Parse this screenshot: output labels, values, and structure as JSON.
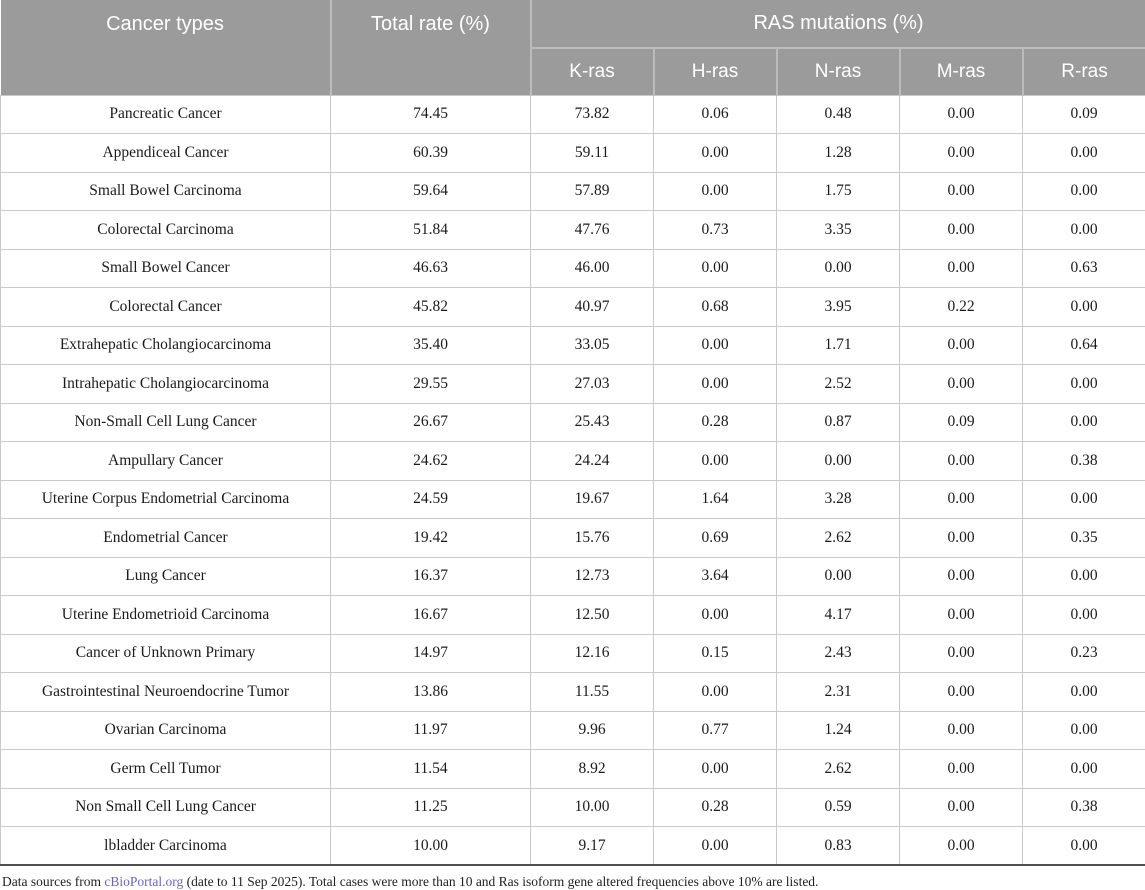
{
  "table": {
    "header": {
      "cancer_types": "Cancer types",
      "total_rate": "Total rate (%)",
      "ras_mutations": "RAS mutations (%)",
      "subcolumns": [
        "K-ras",
        "H-ras",
        "N-ras",
        "M-ras",
        "R-ras"
      ]
    },
    "rows": [
      {
        "cancer_type": "Pancreatic Cancer",
        "total_rate": "74.45",
        "values": [
          "73.82",
          "0.06",
          "0.48",
          "0.00",
          "0.09"
        ]
      },
      {
        "cancer_type": "Appendiceal Cancer",
        "total_rate": "60.39",
        "values": [
          "59.11",
          "0.00",
          "1.28",
          "0.00",
          "0.00"
        ]
      },
      {
        "cancer_type": "Small Bowel Carcinoma",
        "total_rate": "59.64",
        "values": [
          "57.89",
          "0.00",
          "1.75",
          "0.00",
          "0.00"
        ]
      },
      {
        "cancer_type": "Colorectal Carcinoma",
        "total_rate": "51.84",
        "values": [
          "47.76",
          "0.73",
          "3.35",
          "0.00",
          "0.00"
        ]
      },
      {
        "cancer_type": "Small Bowel Cancer",
        "total_rate": "46.63",
        "values": [
          "46.00",
          "0.00",
          "0.00",
          "0.00",
          "0.63"
        ]
      },
      {
        "cancer_type": "Colorectal Cancer",
        "total_rate": "45.82",
        "values": [
          "40.97",
          "0.68",
          "3.95",
          "0.22",
          "0.00"
        ]
      },
      {
        "cancer_type": "Extrahepatic Cholangiocarcinoma",
        "total_rate": "35.40",
        "values": [
          "33.05",
          "0.00",
          "1.71",
          "0.00",
          "0.64"
        ]
      },
      {
        "cancer_type": "Intrahepatic Cholangiocarcinoma",
        "total_rate": "29.55",
        "values": [
          "27.03",
          "0.00",
          "2.52",
          "0.00",
          "0.00"
        ]
      },
      {
        "cancer_type": "Non-Small Cell Lung Cancer",
        "total_rate": "26.67",
        "values": [
          "25.43",
          "0.28",
          "0.87",
          "0.09",
          "0.00"
        ]
      },
      {
        "cancer_type": "Ampullary Cancer",
        "total_rate": "24.62",
        "values": [
          "24.24",
          "0.00",
          "0.00",
          "0.00",
          "0.38"
        ]
      },
      {
        "cancer_type": "Uterine Corpus Endometrial Carcinoma",
        "total_rate": "24.59",
        "values": [
          "19.67",
          "1.64",
          "3.28",
          "0.00",
          "0.00"
        ]
      },
      {
        "cancer_type": "Endometrial Cancer",
        "total_rate": "19.42",
        "values": [
          "15.76",
          "0.69",
          "2.62",
          "0.00",
          "0.35"
        ]
      },
      {
        "cancer_type": "Lung Cancer",
        "total_rate": "16.37",
        "values": [
          "12.73",
          "3.64",
          "0.00",
          "0.00",
          "0.00"
        ]
      },
      {
        "cancer_type": "Uterine Endometrioid Carcinoma",
        "total_rate": "16.67",
        "values": [
          "12.50",
          "0.00",
          "4.17",
          "0.00",
          "0.00"
        ]
      },
      {
        "cancer_type": "Cancer of Unknown Primary",
        "total_rate": "14.97",
        "values": [
          "12.16",
          "0.15",
          "2.43",
          "0.00",
          "0.23"
        ]
      },
      {
        "cancer_type": "Gastrointestinal Neuroendocrine Tumor",
        "total_rate": "13.86",
        "values": [
          "11.55",
          "0.00",
          "2.31",
          "0.00",
          "0.00"
        ]
      },
      {
        "cancer_type": "Ovarian Carcinoma",
        "total_rate": "11.97",
        "values": [
          "9.96",
          "0.77",
          "1.24",
          "0.00",
          "0.00"
        ]
      },
      {
        "cancer_type": "Germ Cell Tumor",
        "total_rate": "11.54",
        "values": [
          "8.92",
          "0.00",
          "2.62",
          "0.00",
          "0.00"
        ]
      },
      {
        "cancer_type": "Non Small Cell Lung Cancer",
        "total_rate": "11.25",
        "values": [
          "10.00",
          "0.28",
          "0.59",
          "0.00",
          "0.38"
        ]
      },
      {
        "cancer_type": "lbladder Carcinoma",
        "total_rate": "10.00",
        "values": [
          "9.17",
          "0.00",
          "0.83",
          "0.00",
          "0.00"
        ]
      }
    ]
  },
  "footnote": {
    "prefix": "Data sources from ",
    "link_text": "cBioPortal.org",
    "suffix": " (date to 11 Sep 2025). Total cases were more than 10 and Ras isoform gene altered frequencies above 10% are listed."
  },
  "colors": {
    "header_bg": "#9b9b9b",
    "header_text": "#ffffff",
    "header_divider": "#bcbcbc",
    "body_border": "#c9c9c9",
    "body_text": "#1b1b1b",
    "table_bottom_border": "#4f4f4f",
    "link": "#6a68b5"
  }
}
